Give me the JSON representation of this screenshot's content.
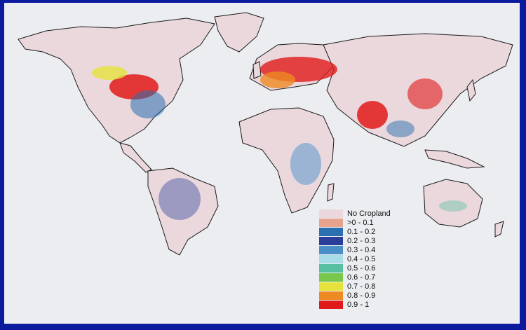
{
  "legend": {
    "items": [
      {
        "label": "No Cropland",
        "color": "#ead8dc"
      },
      {
        "label": ">0 - 0.1",
        "color": "#e7a48c"
      },
      {
        "label": "0.1 - 0.2",
        "color": "#2a6fb0"
      },
      {
        "label": "0.2 - 0.3",
        "color": "#2b3f9a"
      },
      {
        "label": "0.3 - 0.4",
        "color": "#4b8fc9"
      },
      {
        "label": "0.4 - 0.5",
        "color": "#a7dbe5"
      },
      {
        "label": "0.5 - 0.6",
        "color": "#56c0a0"
      },
      {
        "label": "0.6 - 0.7",
        "color": "#78c74c"
      },
      {
        "label": "0.7 - 0.8",
        "color": "#e6e23c"
      },
      {
        "label": "0.8 - 0.9",
        "color": "#ee8a22"
      },
      {
        "label": "0.9 - 1",
        "color": "#e01a1a"
      }
    ]
  },
  "colors": {
    "frame": "#0c1a9e",
    "paper": "#ecedf1",
    "land": "#ead8dc",
    "coast": "#1a1a1a"
  }
}
